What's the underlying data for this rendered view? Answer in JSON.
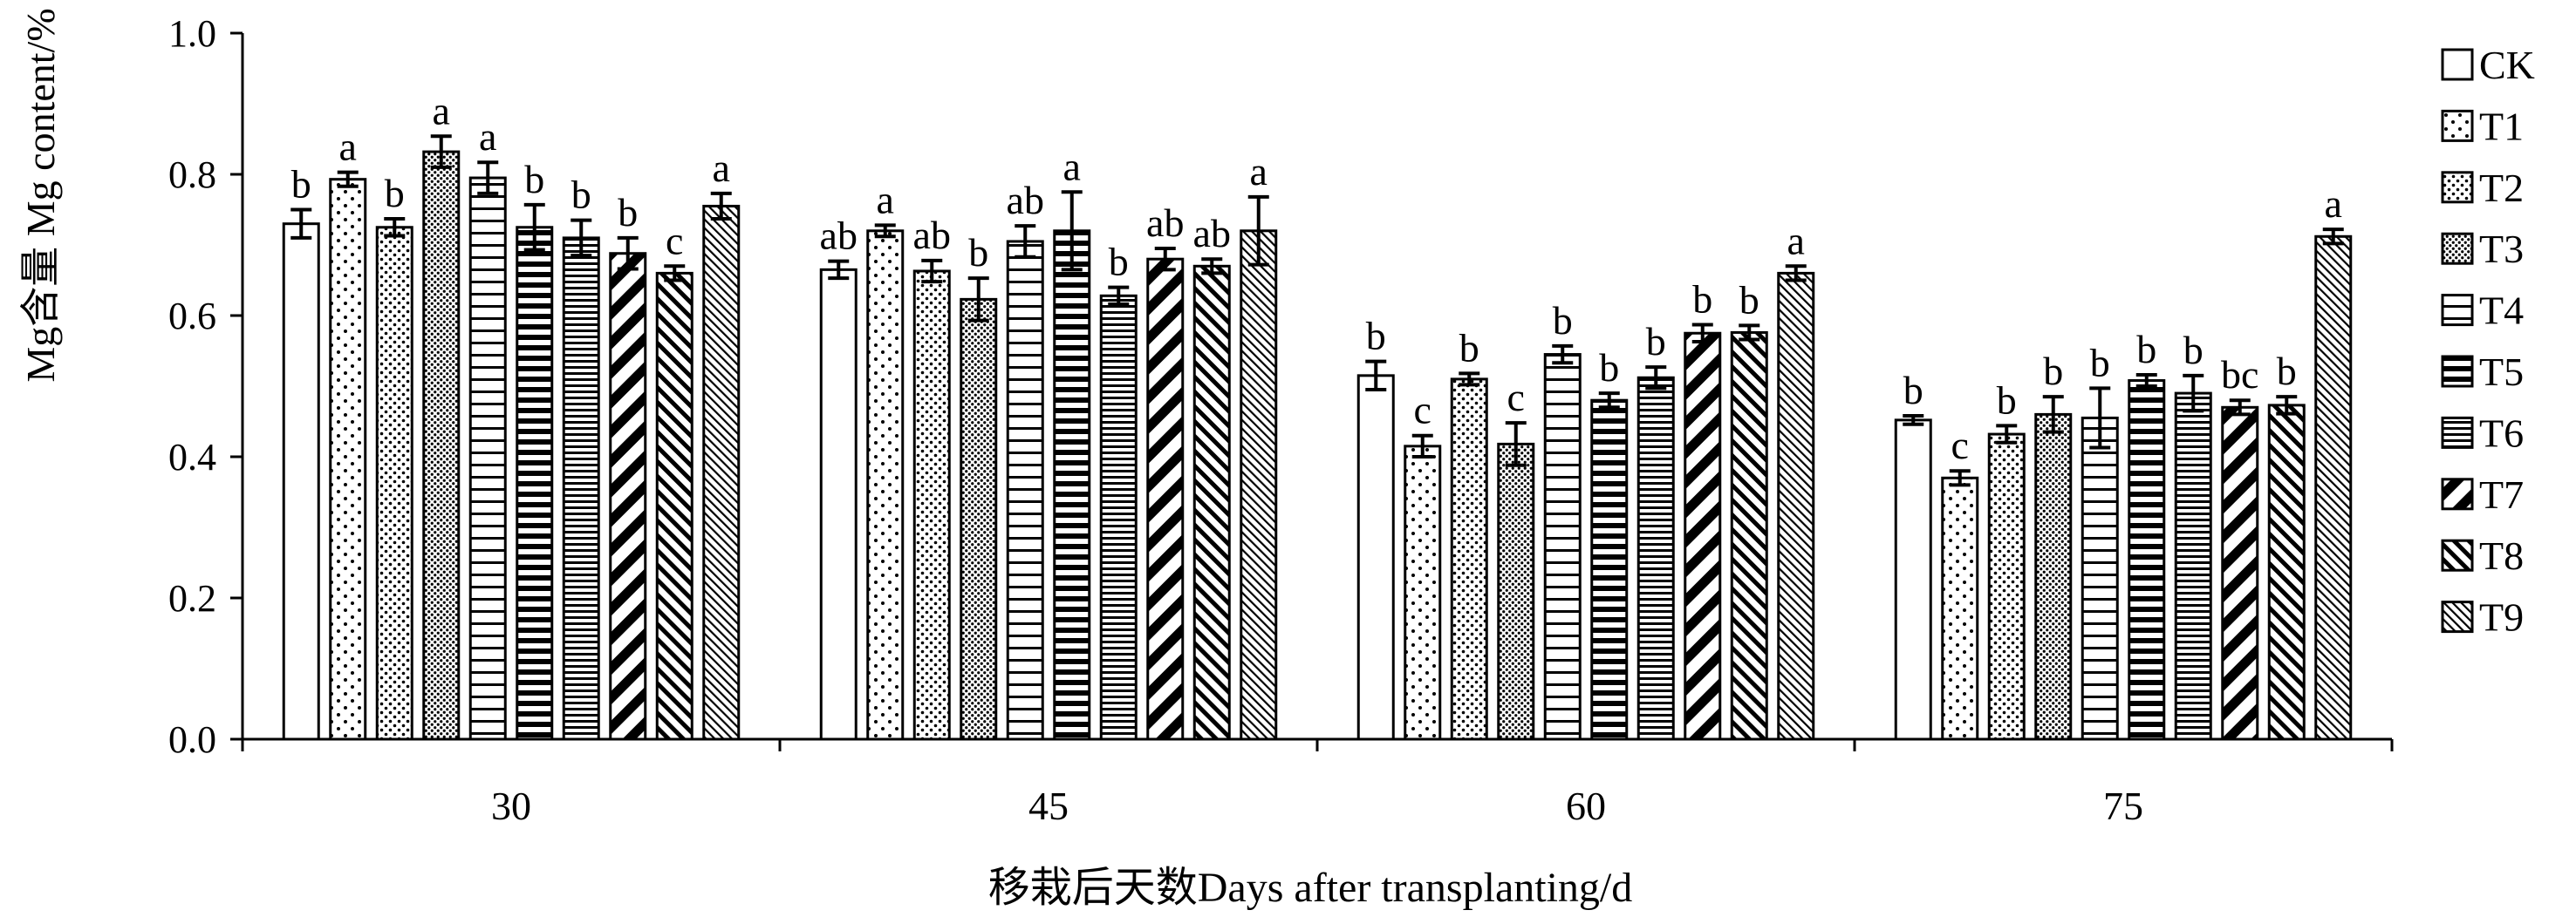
{
  "chart_data": {
    "type": "bar",
    "xlabel": "移栽后天数Days after transplanting/d",
    "ylabel": "Mg含量 Mg content/%",
    "ylim": [
      0,
      1.0
    ],
    "yticks": [
      "0.0",
      "0.2",
      "0.4",
      "0.6",
      "0.8",
      "1.0"
    ],
    "categories": [
      "30",
      "45",
      "60",
      "75"
    ],
    "grid": false,
    "legend_position": "right",
    "series": [
      {
        "name": "CK",
        "pattern": "blank",
        "values": [
          0.73,
          0.665,
          0.515,
          0.452
        ],
        "errors": [
          0.02,
          0.012,
          0.02,
          0.006
        ],
        "labels": [
          "b",
          "ab",
          "b",
          "b"
        ]
      },
      {
        "name": "T1",
        "pattern": "sparse-dots",
        "values": [
          0.793,
          0.72,
          0.415,
          0.37
        ],
        "errors": [
          0.01,
          0.008,
          0.015,
          0.01
        ],
        "labels": [
          "a",
          "a",
          "c",
          "c"
        ]
      },
      {
        "name": "T2",
        "pattern": "dots",
        "values": [
          0.725,
          0.663,
          0.51,
          0.432
        ],
        "errors": [
          0.012,
          0.015,
          0.008,
          0.012
        ],
        "labels": [
          "b",
          "ab",
          "b",
          "b"
        ]
      },
      {
        "name": "T3",
        "pattern": "dense-dots",
        "values": [
          0.832,
          0.623,
          0.418,
          0.46
        ],
        "errors": [
          0.022,
          0.03,
          0.03,
          0.025
        ],
        "labels": [
          "a",
          "b",
          "c",
          "b"
        ]
      },
      {
        "name": "T4",
        "pattern": "horizontal",
        "values": [
          0.795,
          0.705,
          0.545,
          0.455
        ],
        "errors": [
          0.022,
          0.022,
          0.012,
          0.042
        ],
        "labels": [
          "a",
          "ab",
          "b",
          "b"
        ]
      },
      {
        "name": "T5",
        "pattern": "thick-horizontal",
        "values": [
          0.725,
          0.72,
          0.48,
          0.508
        ],
        "errors": [
          0.032,
          0.055,
          0.01,
          0.008
        ],
        "labels": [
          "b",
          "a",
          "b",
          "b"
        ]
      },
      {
        "name": "T6",
        "pattern": "dense-horizontal",
        "values": [
          0.71,
          0.628,
          0.512,
          0.49
        ],
        "errors": [
          0.025,
          0.012,
          0.015,
          0.025
        ],
        "labels": [
          "b",
          "b",
          "b",
          "b"
        ]
      },
      {
        "name": "T7",
        "pattern": "wide-diagonal",
        "values": [
          0.688,
          0.68,
          0.575,
          0.47
        ],
        "errors": [
          0.022,
          0.015,
          0.012,
          0.01
        ],
        "labels": [
          "b",
          "ab",
          "b",
          "bc"
        ]
      },
      {
        "name": "T8",
        "pattern": "diagonal",
        "values": [
          0.66,
          0.67,
          0.576,
          0.473
        ],
        "errors": [
          0.01,
          0.01,
          0.01,
          0.012
        ],
        "labels": [
          "c",
          "ab",
          "b",
          "b"
        ]
      },
      {
        "name": "T9",
        "pattern": "fine-diagonal",
        "values": [
          0.755,
          0.72,
          0.66,
          0.712
        ],
        "errors": [
          0.018,
          0.048,
          0.01,
          0.01
        ],
        "labels": [
          "a",
          "a",
          "a",
          "a"
        ]
      }
    ]
  }
}
